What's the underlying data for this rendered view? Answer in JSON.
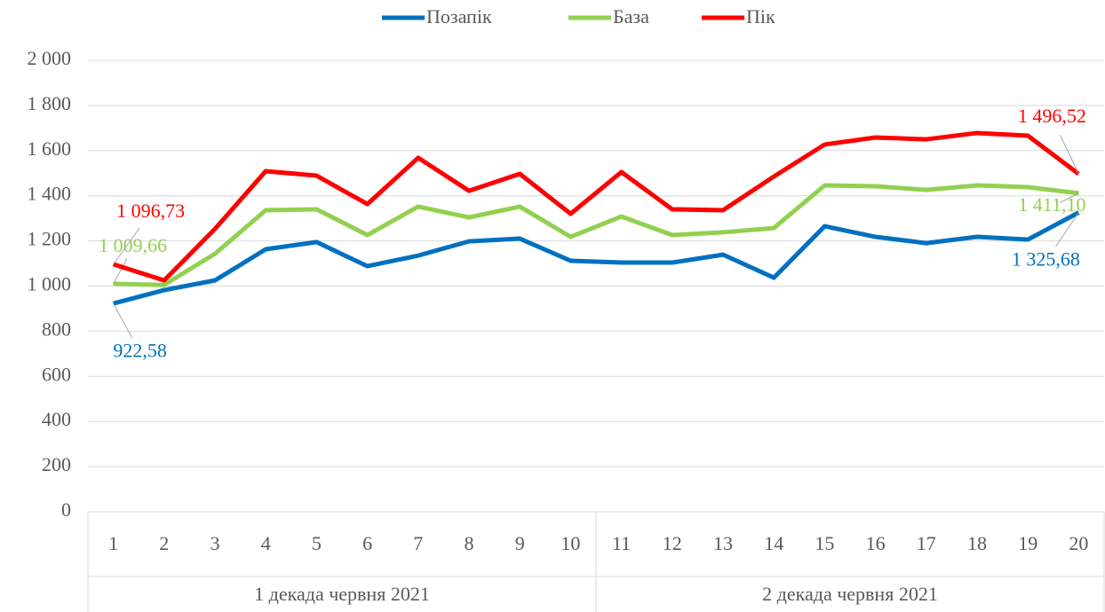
{
  "chart_data": {
    "type": "line",
    "categories": [
      "1",
      "2",
      "3",
      "4",
      "5",
      "6",
      "7",
      "8",
      "9",
      "10",
      "11",
      "12",
      "13",
      "14",
      "15",
      "16",
      "17",
      "18",
      "19",
      "20"
    ],
    "group_labels": [
      "1 декада червня 2021",
      "2 декада червня 2021"
    ],
    "series": [
      {
        "name": "Позапік",
        "color": "#0070c0",
        "values": [
          922.58,
          982,
          1025,
          1163,
          1195,
          1088,
          1135,
          1198,
          1210,
          1112,
          1104,
          1104,
          1139,
          1037,
          1265,
          1218,
          1190,
          1218,
          1206,
          1325.68
        ],
        "value_labels": [
          "922,58",
          null,
          null,
          null,
          null,
          null,
          null,
          null,
          null,
          null,
          null,
          null,
          null,
          null,
          null,
          null,
          null,
          null,
          null,
          "1 325,68"
        ]
      },
      {
        "name": "База",
        "color": "#92d050",
        "values": [
          1009.66,
          1005,
          1143,
          1336,
          1340,
          1226,
          1352,
          1304,
          1352,
          1218,
          1308,
          1226,
          1238,
          1257,
          1446,
          1442,
          1426,
          1446,
          1438,
          1411.1
        ],
        "value_labels": [
          "1 009,66",
          null,
          null,
          null,
          null,
          null,
          null,
          null,
          null,
          null,
          null,
          null,
          null,
          null,
          null,
          null,
          null,
          null,
          null,
          "1 411,10"
        ]
      },
      {
        "name": "Пік",
        "color": "#ff0000",
        "values": [
          1096.73,
          1025,
          1253,
          1509,
          1489,
          1363,
          1568,
          1422,
          1497,
          1320,
          1505,
          1340,
          1336,
          1485,
          1627,
          1658,
          1650,
          1678,
          1666,
          1496.52
        ],
        "value_labels": [
          "1 096,73",
          null,
          null,
          null,
          null,
          null,
          null,
          null,
          null,
          null,
          null,
          null,
          null,
          null,
          null,
          null,
          null,
          null,
          null,
          "1 496,52"
        ]
      }
    ],
    "ylim": [
      0,
      2000
    ],
    "yticks": [
      0,
      200,
      400,
      600,
      800,
      {
        "value": 1000,
        "label": "1 000"
      },
      {
        "value": 1200,
        "label": "1 200"
      },
      {
        "value": 1400,
        "label": "1 400"
      },
      {
        "value": 1600,
        "label": "1 600"
      },
      {
        "value": 1800,
        "label": "1 800"
      },
      {
        "value": 2000,
        "label": "2 000"
      }
    ],
    "grid": true,
    "legend": "top"
  }
}
